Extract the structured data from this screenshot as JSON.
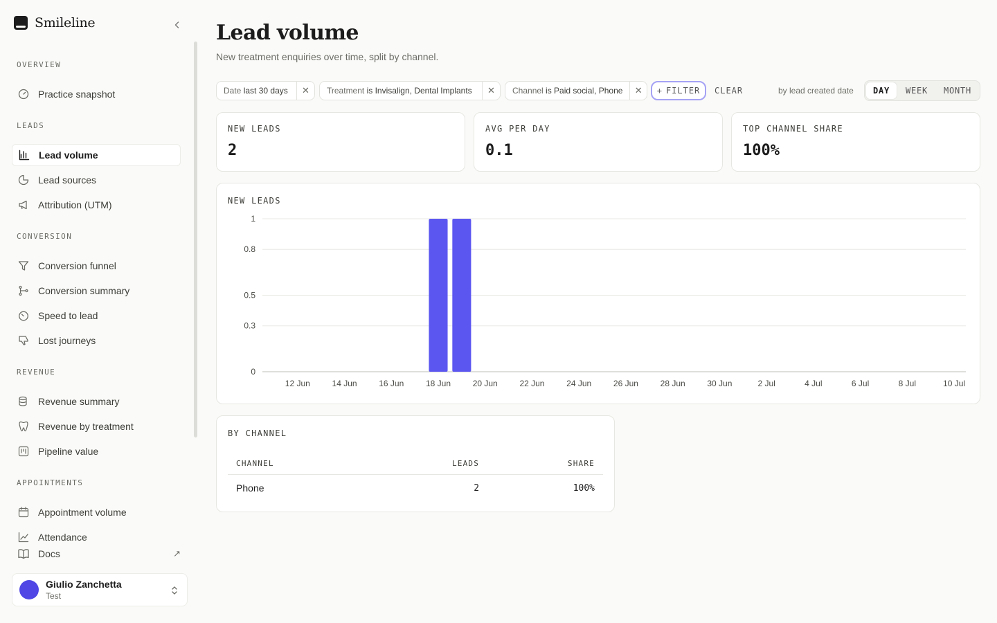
{
  "app": {
    "brand": "Smileline"
  },
  "sidebar": {
    "groups": [
      {
        "title": "OVERVIEW",
        "items": [
          {
            "label": "Practice snapshot",
            "icon": "gauge-icon"
          }
        ]
      },
      {
        "title": "LEADS",
        "items": [
          {
            "label": "Lead volume",
            "icon": "bar-chart-icon",
            "active": true
          },
          {
            "label": "Lead sources",
            "icon": "pie-chart-icon"
          },
          {
            "label": "Attribution (UTM)",
            "icon": "megaphone-icon"
          }
        ]
      },
      {
        "title": "CONVERSION",
        "items": [
          {
            "label": "Conversion funnel",
            "icon": "funnel-icon"
          },
          {
            "label": "Conversion summary",
            "icon": "git-branch-icon"
          },
          {
            "label": "Speed to lead",
            "icon": "timer-icon"
          },
          {
            "label": "Lost journeys",
            "icon": "thumbs-down-icon"
          }
        ]
      },
      {
        "title": "REVENUE",
        "items": [
          {
            "label": "Revenue summary",
            "icon": "coins-icon"
          },
          {
            "label": "Revenue by treatment",
            "icon": "tooth-icon"
          },
          {
            "label": "Pipeline value",
            "icon": "kanban-icon"
          }
        ]
      },
      {
        "title": "APPOINTMENTS",
        "items": [
          {
            "label": "Appointment volume",
            "icon": "calendar-icon"
          },
          {
            "label": "Attendance",
            "icon": "line-chart-icon"
          }
        ]
      }
    ],
    "docs_label": "Docs",
    "user": {
      "name": "Giulio Zanchetta",
      "role": "Test"
    }
  },
  "page": {
    "title": "Lead volume",
    "subtitle": "New treatment enquiries over time, split by channel."
  },
  "filters": {
    "chips": [
      {
        "key": "Date",
        "value": "last 30 days"
      },
      {
        "key": "Treatment",
        "value": "is Invisalign, Dental Implants"
      },
      {
        "key": "Channel",
        "value": "is Paid social, Phone"
      }
    ],
    "filter_label": "FILTER",
    "clear_label": "CLEAR",
    "by_label": "by lead created date",
    "granularity": [
      "DAY",
      "WEEK",
      "MONTH"
    ],
    "granularity_selected": "DAY"
  },
  "kpis": [
    {
      "label": "NEW LEADS",
      "value": "2"
    },
    {
      "label": "AVG PER DAY",
      "value": "0.1"
    },
    {
      "label": "TOP CHANNEL SHARE",
      "value": "100%"
    }
  ],
  "chart_card_label": "NEW LEADS",
  "chart_data": {
    "type": "bar",
    "title": "NEW LEADS",
    "x": [
      "18 Jun",
      "19 Jun"
    ],
    "values": [
      1,
      1
    ],
    "date_range": [
      "11 Jun",
      "10 Jul"
    ],
    "x_tick_labels": [
      "12 Jun",
      "14 Jun",
      "16 Jun",
      "18 Jun",
      "20 Jun",
      "22 Jun",
      "24 Jun",
      "26 Jun",
      "28 Jun",
      "30 Jun",
      "2 Jul",
      "4 Jul",
      "6 Jul",
      "8 Jul",
      "10 Jul"
    ],
    "y_tick_labels": [
      "0",
      "0.3",
      "0.5",
      "0.8",
      "1"
    ],
    "ylim": [
      0,
      1
    ],
    "grid": true,
    "color": "#5b56f0"
  },
  "channel_table": {
    "label": "BY CHANNEL",
    "columns": [
      "CHANNEL",
      "LEADS",
      "SHARE"
    ],
    "rows": [
      {
        "channel": "Phone",
        "leads": "2",
        "share": "100%"
      }
    ]
  }
}
